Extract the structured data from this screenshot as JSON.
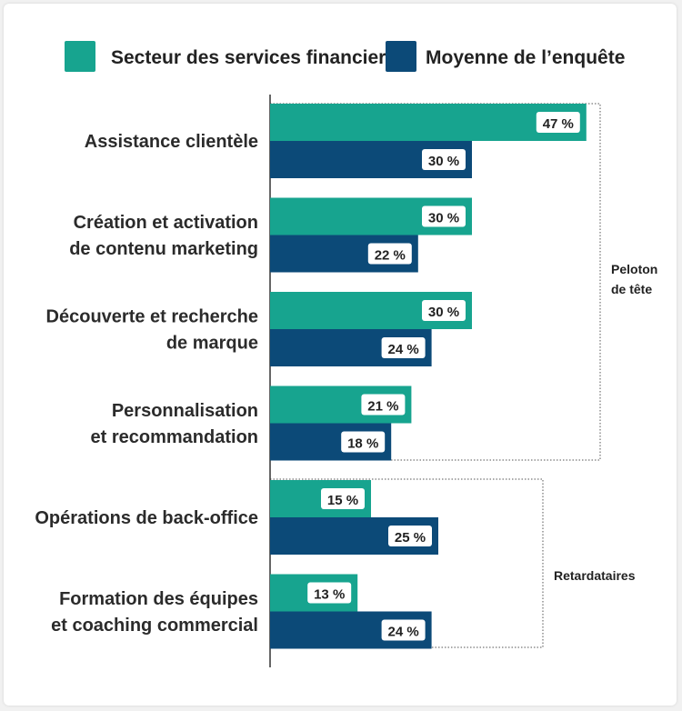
{
  "colors": {
    "financial": "#17a48f",
    "average": "#0c4a78"
  },
  "chart_data": {
    "type": "bar",
    "orientation": "horizontal",
    "legend_position": "top",
    "categories": [
      [
        "Assistance clientèle"
      ],
      [
        "Création et activation",
        "de contenu marketing"
      ],
      [
        "Découverte et recherche",
        "de marque"
      ],
      [
        "Personnalisation",
        "et recommandation"
      ],
      [
        "Opérations de back-office"
      ],
      [
        "Formation des équipes",
        "et coaching commercial"
      ]
    ],
    "series": [
      {
        "name": "Secteur des services financiers",
        "values": [
          47,
          30,
          30,
          21,
          15,
          13
        ]
      },
      {
        "name": "Moyenne de l’enquête",
        "values": [
          30,
          22,
          24,
          18,
          25,
          24
        ]
      }
    ],
    "value_suffix": " %",
    "groups": [
      {
        "label": [
          "Peloton",
          "de tête"
        ],
        "categories": [
          0,
          1,
          2,
          3
        ]
      },
      {
        "label": [
          "Retardataires"
        ],
        "categories": [
          4,
          5
        ]
      }
    ]
  }
}
